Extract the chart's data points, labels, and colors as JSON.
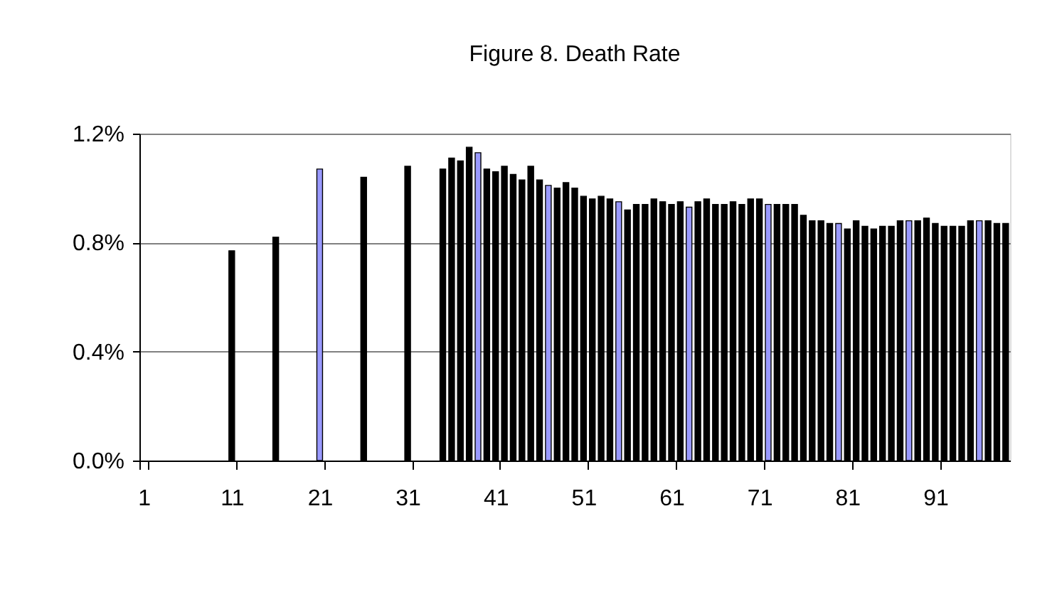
{
  "chart_data": {
    "type": "bar",
    "title": "Figure 8.  Death Rate",
    "categories": [
      "1",
      null,
      null,
      null,
      null,
      null,
      null,
      null,
      null,
      null,
      "11",
      null,
      null,
      null,
      null,
      null,
      null,
      null,
      null,
      null,
      "21",
      null,
      null,
      null,
      null,
      null,
      null,
      null,
      null,
      null,
      "31",
      null,
      null,
      null,
      null,
      null,
      null,
      null,
      null,
      null,
      "41",
      null,
      null,
      null,
      null,
      null,
      null,
      null,
      null,
      null,
      "51",
      null,
      null,
      null,
      null,
      null,
      null,
      null,
      null,
      null,
      "61",
      null,
      null,
      null,
      null,
      null,
      null,
      null,
      null,
      null,
      "71",
      null,
      null,
      null,
      null,
      null,
      null,
      null,
      null,
      null,
      "81",
      null,
      null,
      null,
      null,
      null,
      null,
      null,
      null,
      null,
      "91",
      null,
      null,
      null,
      null,
      null,
      null,
      null,
      null
    ],
    "values": [
      null,
      null,
      null,
      null,
      null,
      null,
      null,
      null,
      null,
      null,
      0.77,
      null,
      null,
      null,
      null,
      0.82,
      null,
      null,
      null,
      null,
      1.07,
      null,
      null,
      null,
      null,
      1.04,
      null,
      null,
      null,
      null,
      1.08,
      null,
      null,
      null,
      1.07,
      1.11,
      1.1,
      1.15,
      1.13,
      1.07,
      1.06,
      1.08,
      1.05,
      1.03,
      1.08,
      1.03,
      1.01,
      1.0,
      1.02,
      1.0,
      0.97,
      0.96,
      0.97,
      0.96,
      0.95,
      0.92,
      0.94,
      0.94,
      0.96,
      0.95,
      0.94,
      0.95,
      0.93,
      0.95,
      0.96,
      0.94,
      0.94,
      0.95,
      0.94,
      0.96,
      0.96,
      0.94,
      0.94,
      0.94,
      0.94,
      0.9,
      0.88,
      0.88,
      0.87,
      0.87,
      0.85,
      0.88,
      0.86,
      0.85,
      0.86,
      0.86,
      0.88,
      0.88,
      0.88,
      0.89,
      0.87,
      0.86,
      0.86,
      0.86,
      0.88,
      0.88,
      0.88,
      0.87,
      0.87
    ],
    "colors": [
      "#000000",
      "#000000",
      "#000000",
      "#000000",
      "#000000",
      "#000000",
      "#000000",
      "#000000",
      "#000000",
      "#000000",
      "#000000",
      "#000000",
      "#000000",
      "#000000",
      "#000000",
      "#000000",
      "#000000",
      "#000000",
      "#000000",
      "#000000",
      "#9999ff",
      "#000000",
      "#000000",
      "#000000",
      "#000000",
      "#000000",
      "#000000",
      "#000000",
      "#000000",
      "#000000",
      "#000000",
      "#000000",
      "#000000",
      "#000000",
      "#000000",
      "#000000",
      "#000000",
      "#000000",
      "#9999ff",
      "#000000",
      "#000000",
      "#000000",
      "#000000",
      "#000000",
      "#000000",
      "#000000",
      "#9999ff",
      "#000000",
      "#000000",
      "#000000",
      "#000000",
      "#000000",
      "#000000",
      "#000000",
      "#9999ff",
      "#000000",
      "#000000",
      "#000000",
      "#000000",
      "#000000",
      "#000000",
      "#000000",
      "#9999ff",
      "#000000",
      "#000000",
      "#000000",
      "#000000",
      "#000000",
      "#000000",
      "#000000",
      "#000000",
      "#9999ff",
      "#000000",
      "#000000",
      "#000000",
      "#000000",
      "#000000",
      "#000000",
      "#000000",
      "#9999ff",
      "#000000",
      "#000000",
      "#000000",
      "#000000",
      "#000000",
      "#000000",
      "#000000",
      "#9999ff",
      "#000000",
      "#000000",
      "#000000",
      "#000000",
      "#000000",
      "#000000",
      "#000000",
      "#9999ff",
      "#000000",
      "#000000",
      "#000000"
    ],
    "ylim": [
      0,
      1.2
    ],
    "yticks": [
      {
        "value": 0,
        "label": "0.0%"
      },
      {
        "value": 0.4,
        "label": "0.4%"
      },
      {
        "value": 0.8,
        "label": "0.8%"
      },
      {
        "value": 1.2,
        "label": "1.2%"
      }
    ],
    "grid": "y",
    "legend": false
  }
}
